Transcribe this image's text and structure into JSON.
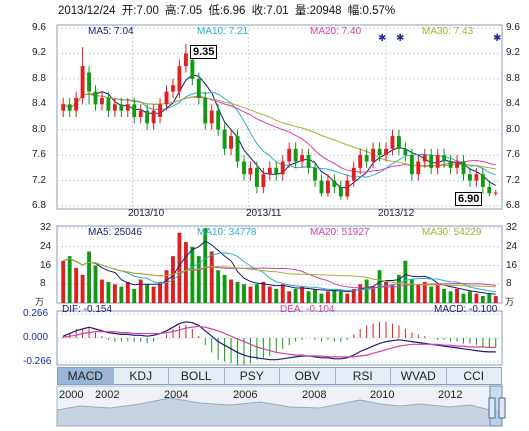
{
  "info": {
    "date": "2013/12/24",
    "open": "开:7.00",
    "high": "高:7.05",
    "low": "低:6.96",
    "close": "收:7.01",
    "volume": "量:20948",
    "change": "幅:0.57%"
  },
  "price_panel": {
    "ma5": "MA5: 7.04",
    "ma10": "MA10: 7.21",
    "ma20": "MA20: 7.40",
    "ma30": "MA30: 7.43",
    "y_ticks": [
      "9.6",
      "9.2",
      "8.8",
      "8.4",
      "8.0",
      "7.6",
      "7.2",
      "6.8"
    ],
    "x_ticks": [
      "2013/10",
      "2013/11",
      "2013/12"
    ],
    "high_marker": "9.35",
    "low_marker": "6.90"
  },
  "volume_panel": {
    "ma5": "MA5: 25046",
    "ma10": "MA10: 34778",
    "ma20": "MA20: 51927",
    "ma30": "MA30: 54229",
    "y_ticks": [
      "32",
      "24",
      "16",
      "8"
    ],
    "unit": "万",
    "unit2": "万"
  },
  "macd_panel": {
    "dif": "DIF: -0.154",
    "dea": "DEA: -0.104",
    "macd": "MACD: -0.100",
    "y_ticks": [
      "0.266",
      "0.000",
      "-0.266"
    ]
  },
  "tabs": [
    "MACD",
    "KDJ",
    "BOLL",
    "PSY",
    "OBV",
    "RSI",
    "WVAD",
    "CCI"
  ],
  "years": [
    "2000",
    "2002",
    "2004",
    "2006",
    "2008",
    "2010",
    "2012"
  ],
  "colors": {
    "up": "#e02020",
    "down": "#109a10",
    "ma5": "#1a1a7a",
    "ma10": "#29b0c9",
    "ma20": "#d63ea8",
    "ma30": "#a8b030"
  },
  "chart_data": [
    {
      "type": "candlestick",
      "title": "",
      "ylim": [
        6.8,
        9.6
      ],
      "x_ticks": [
        "2013/10",
        "2013/11",
        "2013/12"
      ],
      "candles": [
        {
          "o": 8.3,
          "c": 8.4,
          "h": 8.5,
          "l": 8.2
        },
        {
          "o": 8.4,
          "c": 8.3,
          "h": 8.5,
          "l": 8.2
        },
        {
          "o": 8.3,
          "c": 8.5,
          "h": 8.6,
          "l": 8.2
        },
        {
          "o": 8.5,
          "c": 9.0,
          "h": 9.3,
          "l": 8.4
        },
        {
          "o": 8.9,
          "c": 8.6,
          "h": 9.0,
          "l": 8.4
        },
        {
          "o": 8.6,
          "c": 8.4,
          "h": 8.7,
          "l": 8.3
        },
        {
          "o": 8.4,
          "c": 8.5,
          "h": 8.6,
          "l": 8.3
        },
        {
          "o": 8.5,
          "c": 8.3,
          "h": 8.6,
          "l": 8.2
        },
        {
          "o": 8.3,
          "c": 8.4,
          "h": 8.5,
          "l": 8.2
        },
        {
          "o": 8.4,
          "c": 8.3,
          "h": 8.5,
          "l": 8.2
        },
        {
          "o": 8.3,
          "c": 8.4,
          "h": 8.5,
          "l": 8.2
        },
        {
          "o": 8.4,
          "c": 8.2,
          "h": 8.5,
          "l": 8.1
        },
        {
          "o": 8.2,
          "c": 8.3,
          "h": 8.4,
          "l": 8.1
        },
        {
          "o": 8.3,
          "c": 8.1,
          "h": 8.4,
          "l": 8.0
        },
        {
          "o": 8.1,
          "c": 8.3,
          "h": 8.4,
          "l": 8.0
        },
        {
          "o": 8.2,
          "c": 8.4,
          "h": 8.5,
          "l": 8.1
        },
        {
          "o": 8.4,
          "c": 8.6,
          "h": 8.7,
          "l": 8.3
        },
        {
          "o": 8.6,
          "c": 8.7,
          "h": 8.8,
          "l": 8.5
        },
        {
          "o": 8.6,
          "c": 9.0,
          "h": 9.1,
          "l": 8.5
        },
        {
          "o": 9.0,
          "c": 9.2,
          "h": 9.35,
          "l": 8.9
        },
        {
          "o": 9.1,
          "c": 8.8,
          "h": 9.2,
          "l": 8.7
        },
        {
          "o": 8.8,
          "c": 8.5,
          "h": 8.9,
          "l": 8.4
        },
        {
          "o": 8.5,
          "c": 8.1,
          "h": 8.6,
          "l": 8.0
        },
        {
          "o": 8.1,
          "c": 8.3,
          "h": 8.4,
          "l": 8.0
        },
        {
          "o": 8.3,
          "c": 8.0,
          "h": 8.4,
          "l": 7.9
        },
        {
          "o": 8.0,
          "c": 7.7,
          "h": 8.1,
          "l": 7.6
        },
        {
          "o": 7.7,
          "c": 7.9,
          "h": 8.0,
          "l": 7.6
        },
        {
          "o": 7.9,
          "c": 7.5,
          "h": 8.0,
          "l": 7.4
        },
        {
          "o": 7.5,
          "c": 7.3,
          "h": 7.6,
          "l": 7.2
        },
        {
          "o": 7.3,
          "c": 7.4,
          "h": 7.5,
          "l": 7.2
        },
        {
          "o": 7.4,
          "c": 7.1,
          "h": 7.5,
          "l": 7.0
        },
        {
          "o": 7.1,
          "c": 7.3,
          "h": 7.4,
          "l": 7.0
        },
        {
          "o": 7.3,
          "c": 7.4,
          "h": 7.5,
          "l": 7.2
        },
        {
          "o": 7.4,
          "c": 7.3,
          "h": 7.5,
          "l": 7.2
        },
        {
          "o": 7.3,
          "c": 7.5,
          "h": 7.6,
          "l": 7.2
        },
        {
          "o": 7.5,
          "c": 7.7,
          "h": 7.8,
          "l": 7.4
        },
        {
          "o": 7.7,
          "c": 7.5,
          "h": 7.8,
          "l": 7.4
        },
        {
          "o": 7.5,
          "c": 7.6,
          "h": 7.7,
          "l": 7.4
        },
        {
          "o": 7.6,
          "c": 7.4,
          "h": 7.7,
          "l": 7.3
        },
        {
          "o": 7.4,
          "c": 7.2,
          "h": 7.5,
          "l": 7.1
        },
        {
          "o": 7.2,
          "c": 7.0,
          "h": 7.3,
          "l": 6.95
        },
        {
          "o": 7.0,
          "c": 7.2,
          "h": 7.3,
          "l": 6.95
        },
        {
          "o": 7.2,
          "c": 7.1,
          "h": 7.3,
          "l": 7.0
        },
        {
          "o": 7.1,
          "c": 6.95,
          "h": 7.2,
          "l": 6.9
        },
        {
          "o": 6.95,
          "c": 7.2,
          "h": 7.3,
          "l": 6.9
        },
        {
          "o": 7.2,
          "c": 7.4,
          "h": 7.5,
          "l": 7.1
        },
        {
          "o": 7.4,
          "c": 7.6,
          "h": 7.7,
          "l": 7.3
        },
        {
          "o": 7.6,
          "c": 7.5,
          "h": 7.7,
          "l": 7.4
        },
        {
          "o": 7.5,
          "c": 7.7,
          "h": 7.8,
          "l": 7.4
        },
        {
          "o": 7.7,
          "c": 7.6,
          "h": 7.8,
          "l": 7.5
        },
        {
          "o": 7.6,
          "c": 7.7,
          "h": 7.8,
          "l": 7.5
        },
        {
          "o": 7.7,
          "c": 7.9,
          "h": 8.0,
          "l": 7.6
        },
        {
          "o": 7.9,
          "c": 7.7,
          "h": 8.0,
          "l": 7.6
        },
        {
          "o": 7.7,
          "c": 7.6,
          "h": 7.8,
          "l": 7.5
        },
        {
          "o": 7.6,
          "c": 7.3,
          "h": 7.7,
          "l": 7.2
        },
        {
          "o": 7.3,
          "c": 7.5,
          "h": 7.6,
          "l": 7.2
        },
        {
          "o": 7.5,
          "c": 7.6,
          "h": 7.7,
          "l": 7.4
        },
        {
          "o": 7.6,
          "c": 7.4,
          "h": 7.7,
          "l": 7.3
        },
        {
          "o": 7.4,
          "c": 7.6,
          "h": 7.7,
          "l": 7.3
        },
        {
          "o": 7.6,
          "c": 7.5,
          "h": 7.7,
          "l": 7.4
        },
        {
          "o": 7.5,
          "c": 7.4,
          "h": 7.6,
          "l": 7.3
        },
        {
          "o": 7.4,
          "c": 7.5,
          "h": 7.6,
          "l": 7.3
        },
        {
          "o": 7.5,
          "c": 7.3,
          "h": 7.6,
          "l": 7.2
        },
        {
          "o": 7.3,
          "c": 7.2,
          "h": 7.4,
          "l": 7.1
        },
        {
          "o": 7.2,
          "c": 7.3,
          "h": 7.4,
          "l": 7.1
        },
        {
          "o": 7.3,
          "c": 7.1,
          "h": 7.4,
          "l": 7.0
        },
        {
          "o": 7.1,
          "c": 7.0,
          "h": 7.2,
          "l": 6.95
        },
        {
          "o": 7.0,
          "c": 7.01,
          "h": 7.05,
          "l": 6.96
        }
      ]
    },
    {
      "type": "bar",
      "title": "",
      "ylabel": "万",
      "ylim": [
        0,
        32
      ],
      "values": [
        18,
        20,
        15,
        12,
        22,
        16,
        10,
        9,
        8,
        7,
        9,
        6,
        10,
        8,
        7,
        9,
        14,
        20,
        30,
        26,
        24,
        20,
        32,
        22,
        14,
        12,
        10,
        9,
        8,
        7,
        8,
        9,
        7,
        6,
        8,
        5,
        6,
        7,
        5,
        6,
        4,
        5,
        6,
        5,
        4,
        6,
        8,
        10,
        7,
        14,
        9,
        8,
        12,
        18,
        10,
        8,
        9,
        7,
        8,
        6,
        5,
        6,
        4,
        5,
        4,
        3,
        4,
        3
      ]
    },
    {
      "type": "line",
      "title": "",
      "ylim": [
        -0.266,
        0.266
      ],
      "series": [
        {
          "name": "DIF",
          "values": [
            0.02,
            0.05,
            0.08,
            0.1,
            0.12,
            0.1,
            0.08,
            0.06,
            0.05,
            0.04,
            0.04,
            0.03,
            0.03,
            0.02,
            0.03,
            0.05,
            0.08,
            0.12,
            0.16,
            0.18,
            0.17,
            0.14,
            0.08,
            0.02,
            -0.04,
            -0.08,
            -0.12,
            -0.16,
            -0.19,
            -0.21,
            -0.22,
            -0.23,
            -0.24,
            -0.24,
            -0.23,
            -0.22,
            -0.21,
            -0.2,
            -0.2,
            -0.21,
            -0.22,
            -0.22,
            -0.23,
            -0.23,
            -0.22,
            -0.19,
            -0.15,
            -0.12,
            -0.09,
            -0.06,
            -0.04,
            -0.03,
            -0.02,
            -0.03,
            -0.04,
            -0.05,
            -0.06,
            -0.07,
            -0.08,
            -0.09,
            -0.1,
            -0.11,
            -0.12,
            -0.13,
            -0.14,
            -0.15,
            -0.154,
            -0.154
          ]
        },
        {
          "name": "DEA",
          "values": [
            0.01,
            0.02,
            0.03,
            0.05,
            0.06,
            0.07,
            0.07,
            0.07,
            0.07,
            0.06,
            0.06,
            0.05,
            0.05,
            0.05,
            0.05,
            0.05,
            0.06,
            0.07,
            0.09,
            0.11,
            0.12,
            0.13,
            0.12,
            0.1,
            0.08,
            0.05,
            0.02,
            -0.01,
            -0.04,
            -0.07,
            -0.1,
            -0.12,
            -0.14,
            -0.16,
            -0.17,
            -0.18,
            -0.19,
            -0.19,
            -0.2,
            -0.2,
            -0.2,
            -0.21,
            -0.21,
            -0.21,
            -0.21,
            -0.21,
            -0.2,
            -0.19,
            -0.17,
            -0.15,
            -0.13,
            -0.11,
            -0.09,
            -0.08,
            -0.07,
            -0.07,
            -0.07,
            -0.07,
            -0.07,
            -0.08,
            -0.08,
            -0.09,
            -0.09,
            -0.1,
            -0.1,
            -0.1,
            -0.104,
            -0.104
          ]
        }
      ]
    }
  ]
}
